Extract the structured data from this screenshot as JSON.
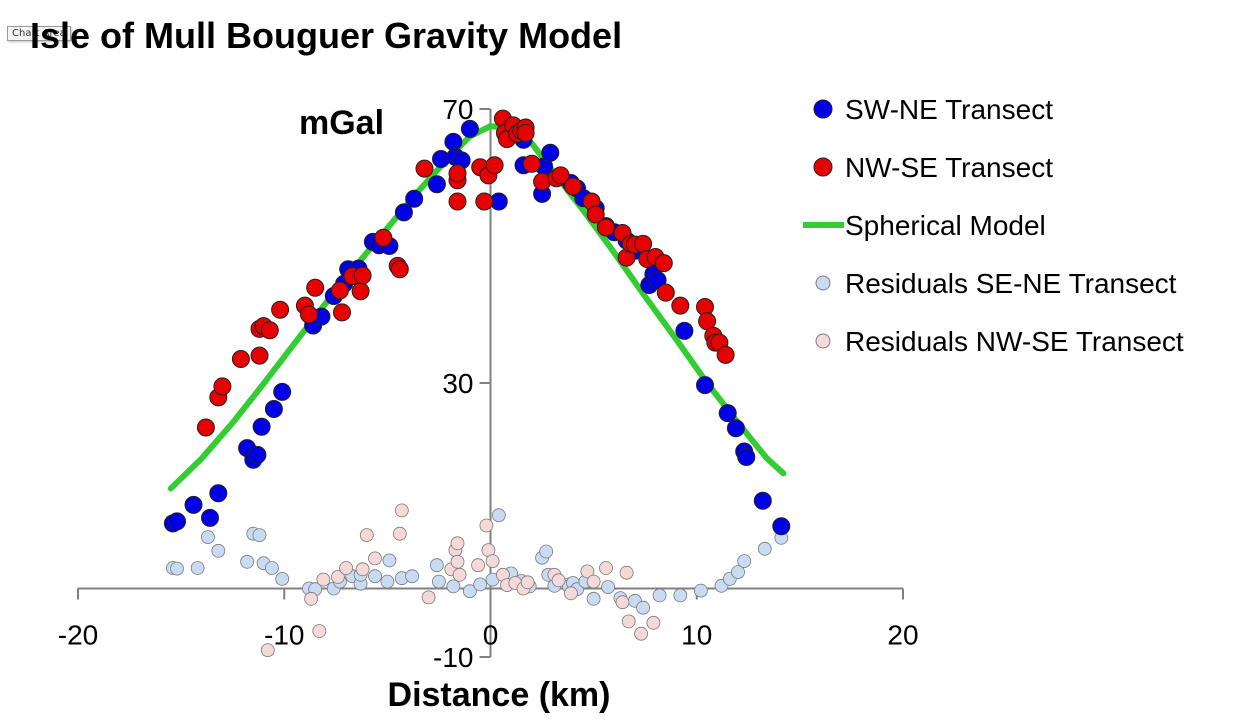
{
  "tooltip": "Chart Area",
  "chart_data": {
    "type": "scatter",
    "title": "Isle of Mull Bouguer Gravity Model",
    "ylabel": "mGal",
    "xlabel": "Distance (km)",
    "xlim": [
      -20,
      20
    ],
    "ylim": [
      -10,
      70
    ],
    "x_ticks": [
      "-20",
      "-10",
      "0",
      "10",
      "20"
    ],
    "y_ticks": [
      "70",
      "30",
      "-10"
    ],
    "grid": false,
    "legend_position": "right",
    "series": [
      {
        "name": "SW-NE Transect",
        "color": "#0000e6",
        "marker": "circle",
        "points": [
          [
            -15.4,
            9.5
          ],
          [
            -15.2,
            9.8
          ],
          [
            -14.4,
            12.2
          ],
          [
            -13.6,
            10.3
          ],
          [
            -13.2,
            13.9
          ],
          [
            -11.8,
            20.5
          ],
          [
            -11.5,
            18.8
          ],
          [
            -11.3,
            19.5
          ],
          [
            -11.1,
            23.6
          ],
          [
            -10.5,
            26.2
          ],
          [
            -10.1,
            28.7
          ],
          [
            -8.6,
            38.4
          ],
          [
            -8.2,
            39.7
          ],
          [
            -7.6,
            42.7
          ],
          [
            -7.1,
            44.5
          ],
          [
            -6.9,
            46.6
          ],
          [
            -6.4,
            46.7
          ],
          [
            -5.7,
            50.6
          ],
          [
            -5.4,
            50.1
          ],
          [
            -4.9,
            50.0
          ],
          [
            -4.2,
            54.9
          ],
          [
            -3.7,
            56.9
          ],
          [
            -2.6,
            59.0
          ],
          [
            -2.4,
            62.7
          ],
          [
            -1.8,
            65.2
          ],
          [
            -1.7,
            63.0
          ],
          [
            -1.4,
            62.5
          ],
          [
            -1.0,
            67.1
          ],
          [
            0.4,
            56.5
          ],
          [
            1.6,
            65.5
          ],
          [
            1.6,
            61.8
          ],
          [
            2.5,
            57.6
          ],
          [
            2.6,
            61.6
          ],
          [
            2.9,
            63.6
          ],
          [
            3.9,
            59.2
          ],
          [
            4.2,
            58.4
          ],
          [
            4.5,
            57.0
          ],
          [
            5.1,
            55.5
          ],
          [
            5.6,
            52.9
          ],
          [
            6.0,
            52.0
          ],
          [
            6.6,
            50.8
          ],
          [
            7.0,
            49.3
          ],
          [
            7.7,
            44.3
          ],
          [
            7.9,
            45.9
          ],
          [
            8.1,
            45.0
          ],
          [
            9.4,
            37.6
          ],
          [
            10.4,
            29.7
          ],
          [
            11.5,
            25.6
          ],
          [
            11.9,
            23.4
          ],
          [
            12.3,
            20.0
          ],
          [
            12.4,
            19.2
          ],
          [
            13.2,
            12.8
          ],
          [
            14.1,
            9.1
          ]
        ]
      },
      {
        "name": "NW-SE Transect",
        "color": "#e60000",
        "marker": "circle",
        "points": [
          [
            -13.8,
            23.5
          ],
          [
            -13.2,
            27.9
          ],
          [
            -13.0,
            29.5
          ],
          [
            -12.1,
            33.5
          ],
          [
            -11.2,
            34.0
          ],
          [
            -11.2,
            37.9
          ],
          [
            -11.0,
            38.3
          ],
          [
            -10.7,
            37.7
          ],
          [
            -10.2,
            40.7
          ],
          [
            -9.0,
            41.3
          ],
          [
            -8.8,
            40.0
          ],
          [
            -8.5,
            43.9
          ],
          [
            -7.3,
            43.5
          ],
          [
            -7.2,
            40.3
          ],
          [
            -6.7,
            45.6
          ],
          [
            -6.3,
            43.4
          ],
          [
            -6.2,
            45.7
          ],
          [
            -5.2,
            51.2
          ],
          [
            -4.5,
            47.1
          ],
          [
            -4.4,
            46.6
          ],
          [
            -3.2,
            61.3
          ],
          [
            -1.6,
            59.6
          ],
          [
            -1.6,
            60.6
          ],
          [
            -1.6,
            56.5
          ],
          [
            -0.5,
            61.5
          ],
          [
            -0.3,
            56.5
          ],
          [
            -0.1,
            60.3
          ],
          [
            0.2,
            61.8
          ],
          [
            0.6,
            68.6
          ],
          [
            0.7,
            66.5
          ],
          [
            0.8,
            65.6
          ],
          [
            1.1,
            67.6
          ],
          [
            1.3,
            66.4
          ],
          [
            1.5,
            66.8
          ],
          [
            1.7,
            67.3
          ],
          [
            1.7,
            66.5
          ],
          [
            2.0,
            62.0
          ],
          [
            2.5,
            59.4
          ],
          [
            3.2,
            59.9
          ],
          [
            3.4,
            60.3
          ],
          [
            4.0,
            58.7
          ],
          [
            4.9,
            56.5
          ],
          [
            5.1,
            54.6
          ],
          [
            5.6,
            52.7
          ],
          [
            6.4,
            51.9
          ],
          [
            6.6,
            48.3
          ],
          [
            6.8,
            50.3
          ],
          [
            7.0,
            50.2
          ],
          [
            7.4,
            50.3
          ],
          [
            7.6,
            48.1
          ],
          [
            8.0,
            48.4
          ],
          [
            8.4,
            47.5
          ],
          [
            8.5,
            43.2
          ],
          [
            9.2,
            41.3
          ],
          [
            10.4,
            41.1
          ],
          [
            10.5,
            39.0
          ],
          [
            10.8,
            36.9
          ],
          [
            10.9,
            35.9
          ],
          [
            11.1,
            35.9
          ],
          [
            11.4,
            34.1
          ]
        ]
      },
      {
        "name": "Spherical Model",
        "color": "#33cc33",
        "marker": "line",
        "points": [
          [
            -15.5,
            14.6
          ],
          [
            -14.0,
            19.0
          ],
          [
            -12.5,
            24.2
          ],
          [
            -11.0,
            29.9
          ],
          [
            -9.5,
            35.8
          ],
          [
            -8.0,
            41.6
          ],
          [
            -6.5,
            47.2
          ],
          [
            -5.0,
            52.6
          ],
          [
            -3.5,
            58.0
          ],
          [
            -2.0,
            63.0
          ],
          [
            -1.0,
            66.0
          ],
          [
            0.0,
            67.5
          ],
          [
            1.0,
            67.2
          ],
          [
            2.0,
            65.0
          ],
          [
            3.0,
            61.0
          ],
          [
            4.5,
            55.2
          ],
          [
            6.0,
            49.0
          ],
          [
            7.5,
            42.6
          ],
          [
            9.0,
            36.4
          ],
          [
            10.5,
            30.0
          ],
          [
            12.0,
            24.2
          ],
          [
            13.4,
            19.0
          ],
          [
            14.2,
            16.8
          ]
        ]
      },
      {
        "name": "Residuals SE-NE Transect",
        "color": "#c9dbf2",
        "marker": "circle",
        "points": [
          [
            -15.4,
            3.0
          ],
          [
            -15.2,
            2.9
          ],
          [
            -14.2,
            3.0
          ],
          [
            -13.7,
            7.5
          ],
          [
            -13.2,
            5.5
          ],
          [
            -11.8,
            3.9
          ],
          [
            -11.5,
            8.0
          ],
          [
            -11.2,
            7.8
          ],
          [
            -11.0,
            3.7
          ],
          [
            -10.6,
            3.0
          ],
          [
            -10.1,
            1.4
          ],
          [
            -8.8,
            0.0
          ],
          [
            -8.5,
            -0.1
          ],
          [
            -7.6,
            0.0
          ],
          [
            -7.3,
            1.0
          ],
          [
            -6.7,
            1.8
          ],
          [
            -6.3,
            0.7
          ],
          [
            -6.3,
            2.0
          ],
          [
            -5.6,
            1.8
          ],
          [
            -5.0,
            1.0
          ],
          [
            -4.9,
            4.1
          ],
          [
            -4.3,
            1.5
          ],
          [
            -3.8,
            1.8
          ],
          [
            -2.6,
            3.4
          ],
          [
            -2.5,
            1.0
          ],
          [
            -1.8,
            0.3
          ],
          [
            -1.0,
            -0.4
          ],
          [
            -0.5,
            0.6
          ],
          [
            0.1,
            1.3
          ],
          [
            0.4,
            10.7
          ],
          [
            1.0,
            2.2
          ],
          [
            1.5,
            1.1
          ],
          [
            1.9,
            0.3
          ],
          [
            2.5,
            4.5
          ],
          [
            2.7,
            5.4
          ],
          [
            2.8,
            2.0
          ],
          [
            3.1,
            0.4
          ],
          [
            3.8,
            0.6
          ],
          [
            3.8,
            0.3
          ],
          [
            4.0,
            0.8
          ],
          [
            4.2,
            -0.1
          ],
          [
            4.6,
            1.0
          ],
          [
            5.0,
            -1.5
          ],
          [
            5.7,
            0.2
          ],
          [
            6.3,
            -1.4
          ],
          [
            7.0,
            -1.8
          ],
          [
            7.4,
            -2.8
          ],
          [
            8.2,
            -1.0
          ],
          [
            9.2,
            -1.0
          ],
          [
            10.2,
            -0.3
          ],
          [
            11.2,
            0.4
          ],
          [
            11.6,
            1.4
          ],
          [
            12.0,
            2.4
          ],
          [
            12.3,
            4.0
          ],
          [
            13.3,
            5.8
          ],
          [
            14.1,
            7.4
          ]
        ]
      },
      {
        "name": "Residuals NW-SE Transect",
        "color": "#f5d9d9",
        "marker": "circle",
        "points": [
          [
            -10.8,
            -9.0
          ],
          [
            -8.7,
            -1.5
          ],
          [
            -8.3,
            -6.2
          ],
          [
            -8.1,
            1.3
          ],
          [
            -7.4,
            1.7
          ],
          [
            -7.0,
            3.0
          ],
          [
            -6.2,
            2.8
          ],
          [
            -6.0,
            7.8
          ],
          [
            -5.6,
            4.4
          ],
          [
            -4.4,
            8.0
          ],
          [
            -4.3,
            11.4
          ],
          [
            -3.0,
            -1.3
          ],
          [
            -1.9,
            2.8
          ],
          [
            -1.7,
            5.6
          ],
          [
            -1.6,
            6.6
          ],
          [
            -1.6,
            3.9
          ],
          [
            -1.5,
            2.0
          ],
          [
            -0.6,
            3.4
          ],
          [
            -0.2,
            9.2
          ],
          [
            -0.1,
            5.6
          ],
          [
            0.1,
            4.0
          ],
          [
            0.6,
            2.0
          ],
          [
            0.8,
            0.5
          ],
          [
            1.2,
            0.8
          ],
          [
            1.6,
            0.0
          ],
          [
            1.8,
            0.9
          ],
          [
            3.1,
            2.0
          ],
          [
            3.3,
            1.2
          ],
          [
            3.9,
            -0.7
          ],
          [
            4.7,
            2.5
          ],
          [
            5.0,
            1.0
          ],
          [
            5.6,
            3.0
          ],
          [
            6.4,
            -2.0
          ],
          [
            6.6,
            2.3
          ],
          [
            6.7,
            -4.8
          ],
          [
            7.3,
            -6.6
          ],
          [
            7.9,
            -5.0
          ]
        ]
      }
    ]
  }
}
